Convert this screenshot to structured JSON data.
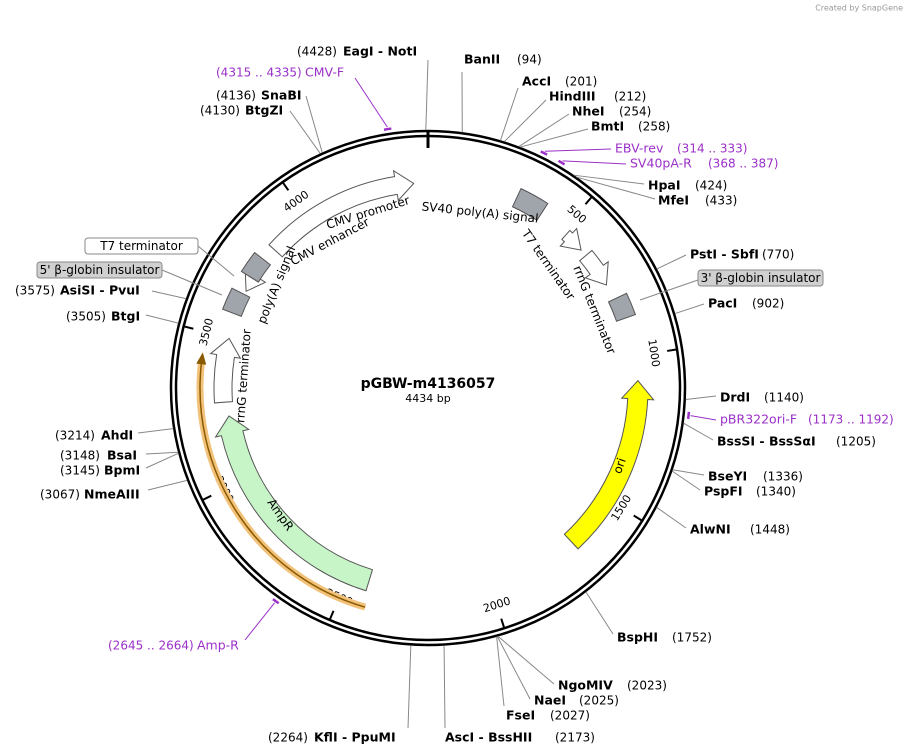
{
  "header": {
    "credit": "Created by SnapGene"
  },
  "plasmid": {
    "name": "pGBW-m4136057",
    "size": "4434 bp"
  },
  "ticks": [
    500,
    1000,
    1500,
    2000,
    2500,
    3000,
    3500,
    4000
  ],
  "enzymes": [
    {
      "name": "BanII",
      "location": "(94)"
    },
    {
      "name": "AccI",
      "location": "(201)"
    },
    {
      "name": "HindIII",
      "location": "(212)"
    },
    {
      "name": "NheI",
      "location": "(254)"
    },
    {
      "name": "BmtI",
      "location": "(258)"
    },
    {
      "name": "HpaI",
      "location": "(424)"
    },
    {
      "name": "MfeI",
      "location": "(433)"
    },
    {
      "name": "PstI - SbfI",
      "location": "(770)"
    },
    {
      "name": "PacI",
      "location": "(902)"
    },
    {
      "name": "DrdI",
      "location": "(1140)"
    },
    {
      "name": "BssSI - BssSαI",
      "location": "(1205)"
    },
    {
      "name": "BseYI",
      "location": "(1336)"
    },
    {
      "name": "PspFI",
      "location": "(1340)"
    },
    {
      "name": "AlwNI",
      "location": "(1448)"
    },
    {
      "name": "BspHI",
      "location": "(1752)"
    },
    {
      "name": "NgoMIV",
      "location": "(2023)"
    },
    {
      "name": "NaeI",
      "location": "(2025)"
    },
    {
      "name": "FseI",
      "location": "(2027)"
    },
    {
      "name": "AscI - BssHII",
      "location": "(2173)"
    },
    {
      "name": "KflI - PpuMI",
      "location": "(2264)"
    },
    {
      "name": "NmeAIII",
      "location": "(3067)"
    },
    {
      "name": "BpmI",
      "location": "(3145)"
    },
    {
      "name": "BsaI",
      "location": "(3148)"
    },
    {
      "name": "AhdI",
      "location": "(3214)"
    },
    {
      "name": "BtgI",
      "location": "(3505)"
    },
    {
      "name": "AsiSI - PvuI",
      "location": "(3575)"
    },
    {
      "name": "BtgZI",
      "location": "(4130)"
    },
    {
      "name": "SnaBI",
      "location": "(4136)"
    },
    {
      "name": "EagI - NotI",
      "location": "(4428)"
    }
  ],
  "primers": [
    {
      "name": "CMV-F",
      "location": "(4315 .. 4335)"
    },
    {
      "name": "EBV-rev",
      "location": "(314 .. 333)"
    },
    {
      "name": "SV40pA-R",
      "location": "(368 .. 387)"
    },
    {
      "name": "pBR322ori-F",
      "location": "(1173 .. 1192)"
    },
    {
      "name": "Amp-R",
      "location": "(2645 .. 2664)"
    }
  ],
  "features": [
    {
      "name": "CMV enhancer"
    },
    {
      "name": "CMV promoter"
    },
    {
      "name": "SV40 poly(A) signal"
    },
    {
      "name": "T7 terminator"
    },
    {
      "name": "rrnG terminator"
    },
    {
      "name": "poly(A) signal"
    },
    {
      "name": "rrnG terminator"
    },
    {
      "name": "AmpR"
    },
    {
      "name": "ori"
    }
  ],
  "callouts": [
    {
      "name": "T7 terminator"
    },
    {
      "name": "5' β-globin insulator"
    },
    {
      "name": "3' β-globin insulator"
    }
  ]
}
